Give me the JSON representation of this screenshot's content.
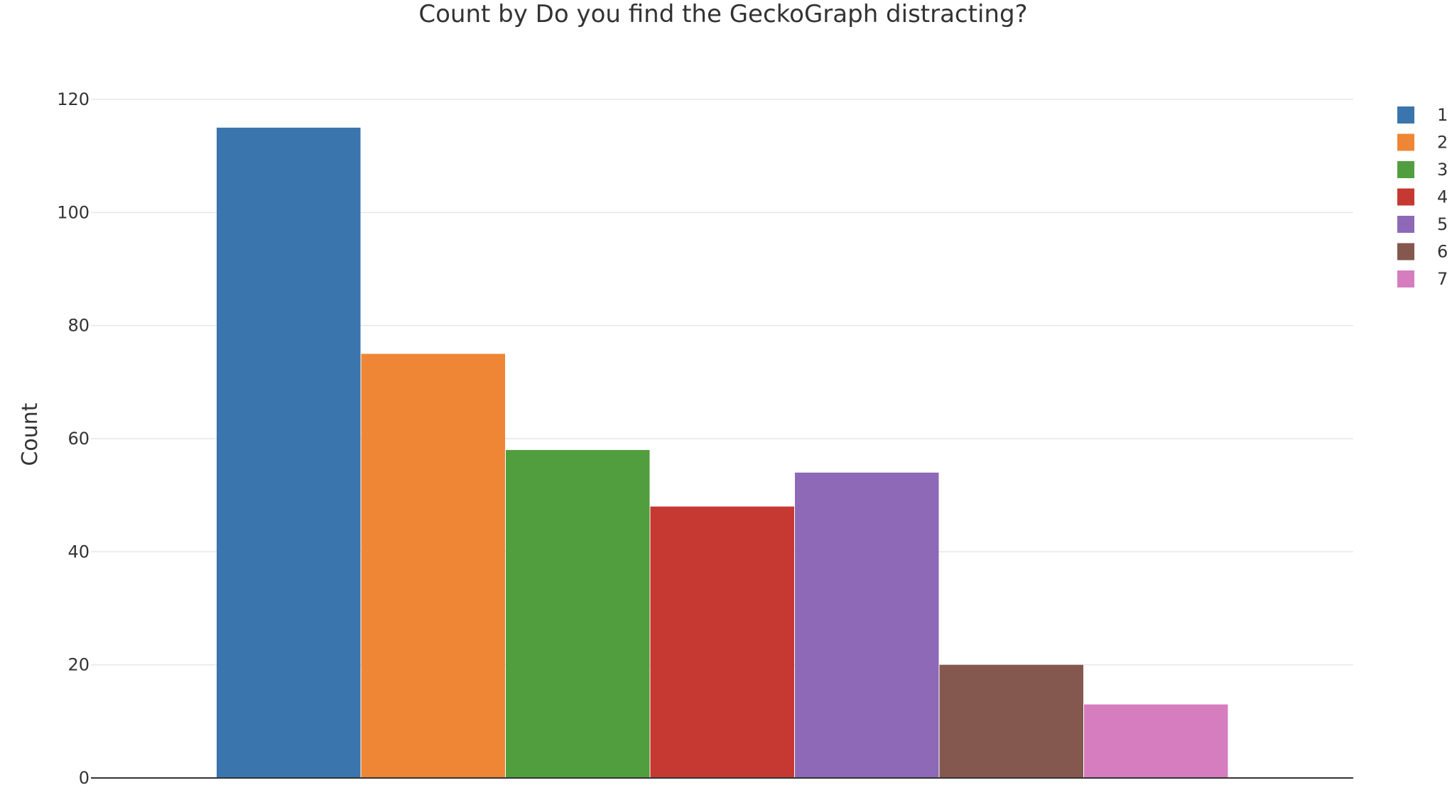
{
  "chart_data": {
    "type": "bar",
    "title": "Count by Do you find the GeckoGraph distracting?",
    "xlabel": "",
    "ylabel": "Count",
    "ylim": [
      0,
      120
    ],
    "yticks": [
      0,
      20,
      40,
      60,
      80,
      100,
      120
    ],
    "grid": true,
    "legend_placement": "top-right",
    "categories": [
      "1",
      "2",
      "3",
      "4",
      "5",
      "6",
      "7"
    ],
    "values": [
      115,
      75,
      58,
      48,
      54,
      20,
      13
    ],
    "colors": [
      "#3a75ae",
      "#ef8636",
      "#519e3e",
      "#c53932",
      "#8d69b8",
      "#84584e",
      "#d57dbf"
    ]
  }
}
